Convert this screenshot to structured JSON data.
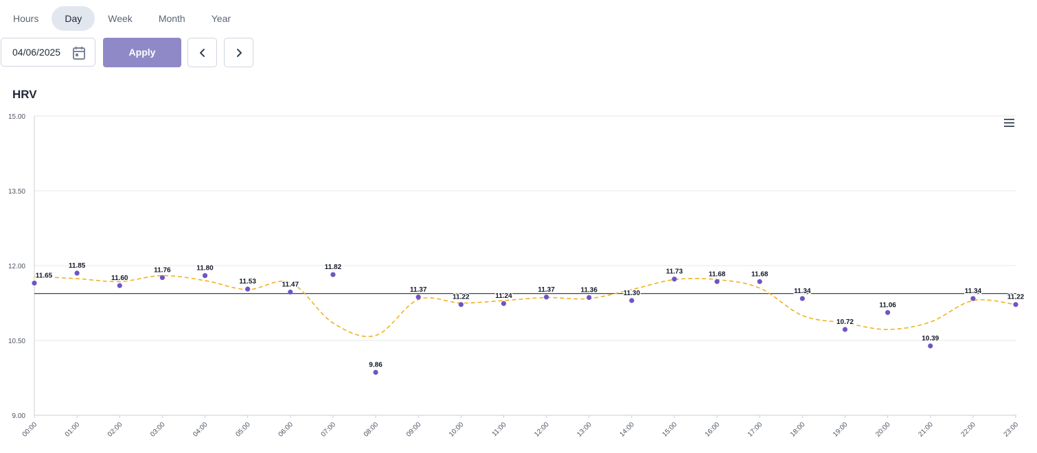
{
  "period_tabs": {
    "items": [
      "Hours",
      "Day",
      "Week",
      "Month",
      "Year"
    ],
    "active": "Day"
  },
  "controls": {
    "date_value": "04/06/2025",
    "apply_label": "Apply"
  },
  "colors": {
    "accent": "#9089c7",
    "point": "#6e55c4",
    "trend": "#f2b01e",
    "reference_line": "#2b2b2b",
    "grid": "#e5e7eb"
  },
  "chart_data": {
    "type": "scatter",
    "title": "HRV",
    "categories": [
      "00:00",
      "01:00",
      "02:00",
      "03:00",
      "04:00",
      "05:00",
      "06:00",
      "07:00",
      "08:00",
      "09:00",
      "10:00",
      "11:00",
      "12:00",
      "13:00",
      "14:00",
      "15:00",
      "16:00",
      "17:00",
      "18:00",
      "19:00",
      "20:00",
      "21:00",
      "22:00",
      "23:00"
    ],
    "series": [
      {
        "type": "scatter",
        "values": [
          11.65,
          11.85,
          11.6,
          11.76,
          11.8,
          11.53,
          11.47,
          11.82,
          9.86,
          11.37,
          11.22,
          11.24,
          11.37,
          11.36,
          11.3,
          11.73,
          11.68,
          11.68,
          11.34,
          10.72,
          11.06,
          10.39,
          11.34,
          11.22
        ],
        "data_labels": [
          "11.65",
          "11.85",
          "11.60",
          "11.76",
          "11.80",
          "11.53",
          "11.47",
          "11.82",
          "9.86",
          "11.37",
          "11.22",
          "11.24",
          "11.37",
          "11.36",
          "11.30",
          "11.73",
          "11.68",
          "11.68",
          "11.34",
          "10.72",
          "11.06",
          "10.39",
          "11.34",
          "11.22"
        ]
      },
      {
        "type": "line",
        "style": "dashed-smooth",
        "values": [
          11.78,
          11.74,
          11.68,
          11.8,
          11.7,
          11.52,
          11.66,
          10.85,
          10.6,
          11.32,
          11.25,
          11.3,
          11.36,
          11.34,
          11.52,
          11.72,
          11.72,
          11.55,
          11.0,
          10.85,
          10.72,
          10.87,
          11.3,
          11.22
        ]
      }
    ],
    "reference_line": 11.44,
    "ylim": [
      9.0,
      15.0
    ],
    "yticks": [
      "9.00",
      "10.50",
      "12.00",
      "13.50",
      "15.00"
    ],
    "ytick_values": [
      9.0,
      10.5,
      12.0,
      13.5,
      15.0
    ],
    "grid": true,
    "legend": "none"
  }
}
